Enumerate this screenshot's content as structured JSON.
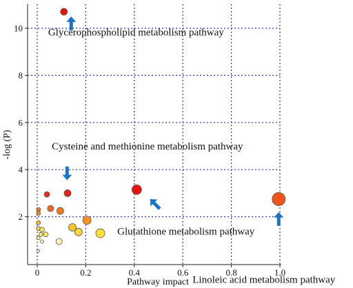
{
  "chart_data": {
    "type": "scatter",
    "xlabel": "Pathway impact",
    "ylabel": "-log (P)",
    "xlim": [
      0,
      1.0
    ],
    "ylim": [
      0,
      11
    ],
    "xticks": [
      0,
      0.2,
      0.4,
      0.6,
      0.8,
      1.0
    ],
    "yticks": [
      2,
      4,
      6,
      8,
      10
    ],
    "grid": true,
    "points": [
      {
        "x": 0.11,
        "y": 10.7,
        "size": 5,
        "color": "#e8140c"
      },
      {
        "x": 0.41,
        "y": 3.15,
        "size": 7,
        "color": "#e8140c"
      },
      {
        "x": 0.995,
        "y": 2.75,
        "size": 9.5,
        "color": "#f0541a"
      },
      {
        "x": 0.125,
        "y": 3.0,
        "size": 5,
        "color": "#e8241a"
      },
      {
        "x": 0.04,
        "y": 2.95,
        "size": 4,
        "color": "#e83018"
      },
      {
        "x": 0.055,
        "y": 2.35,
        "size": 4.5,
        "color": "#f06a1e"
      },
      {
        "x": 0.095,
        "y": 2.25,
        "size": 5,
        "color": "#f07a22"
      },
      {
        "x": 0.005,
        "y": 2.3,
        "size": 3,
        "color": "#f07a22"
      },
      {
        "x": 0.005,
        "y": 2.15,
        "size": 3,
        "color": "#f08a26"
      },
      {
        "x": 0.205,
        "y": 1.85,
        "size": 6,
        "color": "#f7941e"
      },
      {
        "x": 0.005,
        "y": 1.75,
        "size": 3,
        "color": "#f7b52a"
      },
      {
        "x": 0.145,
        "y": 1.55,
        "size": 5.5,
        "color": "#f6c72a"
      },
      {
        "x": 0.17,
        "y": 1.35,
        "size": 5.5,
        "color": "#f8d63a"
      },
      {
        "x": 0.26,
        "y": 1.3,
        "size": 6.5,
        "color": "#fae030"
      },
      {
        "x": 0.005,
        "y": 1.5,
        "size": 3,
        "color": "#f8d04a"
      },
      {
        "x": 0.02,
        "y": 1.45,
        "size": 3.5,
        "color": "#f8e060"
      },
      {
        "x": 0.015,
        "y": 1.25,
        "size": 3,
        "color": "#faea6a"
      },
      {
        "x": 0.035,
        "y": 1.25,
        "size": 3.5,
        "color": "#fae868"
      },
      {
        "x": 0.005,
        "y": 1.1,
        "size": 2.5,
        "color": "#fbee88"
      },
      {
        "x": 0.09,
        "y": 0.95,
        "size": 4.5,
        "color": "#fbf1b0"
      },
      {
        "x": 0.02,
        "y": 0.95,
        "size": 2.5,
        "color": "#fcf4c0"
      },
      {
        "x": 0.005,
        "y": 0.55,
        "size": 2,
        "color": "#fefaf0"
      }
    ],
    "annotations": [
      {
        "text": "Glycerophospholipid metabolism pathway",
        "x": 0.045,
        "y": 9.7,
        "arrow": {
          "x": 0.14,
          "y": 10.5,
          "dir": "up"
        }
      },
      {
        "text": "Cysteine and methionine metabolism pathway",
        "x": 0.06,
        "y": 4.85,
        "arrow": {
          "x": 0.123,
          "y": 3.55,
          "dir": "down"
        }
      },
      {
        "text": "Glutathione metabolism pathway",
        "x": 0.33,
        "y": 1.25,
        "arrow": {
          "x": 0.465,
          "y": 2.75,
          "dir": "up-left"
        }
      },
      {
        "text": "Linoleic acid metabolism pathway",
        "x": 0.64,
        "y": -0.8,
        "arrow": {
          "x": 0.995,
          "y": 2.2,
          "dir": "up"
        }
      }
    ],
    "colors": {
      "grid": "#2233cc",
      "arrow": "#1f73c6",
      "point_stroke": "#555555"
    }
  }
}
